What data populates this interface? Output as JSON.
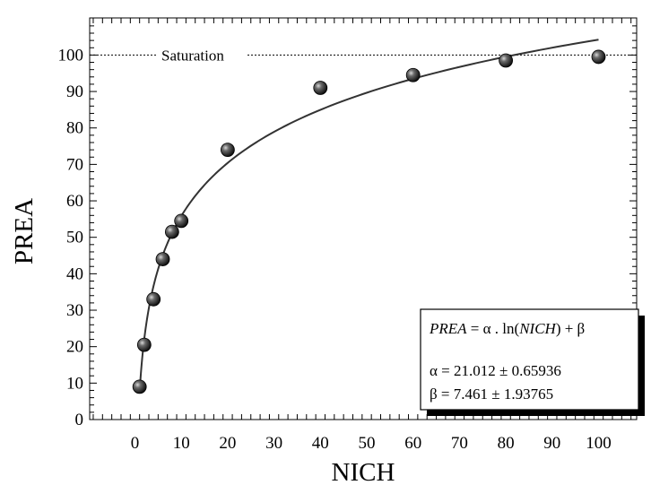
{
  "chart_data": {
    "type": "scatter",
    "xlabel": "NICH",
    "ylabel": "PREA",
    "xlim": [
      -10,
      110
    ],
    "ylim": [
      0,
      108
    ],
    "x_ticks": [
      0,
      10,
      20,
      30,
      40,
      50,
      60,
      70,
      80,
      90,
      100
    ],
    "y_ticks": [
      0,
      10,
      20,
      30,
      40,
      50,
      60,
      70,
      80,
      90,
      100
    ],
    "points": [
      {
        "x": 1,
        "y": 9
      },
      {
        "x": 2,
        "y": 20.5
      },
      {
        "x": 4,
        "y": 33
      },
      {
        "x": 6,
        "y": 44
      },
      {
        "x": 8,
        "y": 51.5
      },
      {
        "x": 10,
        "y": 54.5
      },
      {
        "x": 20,
        "y": 74
      },
      {
        "x": 40,
        "y": 91
      },
      {
        "x": 60,
        "y": 94.5
      },
      {
        "x": 80,
        "y": 98.5
      },
      {
        "x": 100,
        "y": 99.5
      }
    ],
    "fit": {
      "equation": "PREA = α . ln(NICH) + β",
      "alpha": 21.012,
      "beta": 7.461,
      "x_range": [
        1,
        100
      ]
    },
    "reference_line": {
      "y": 100,
      "label": "Saturation"
    },
    "legend_box": {
      "eq_lhs": "PREA",
      "eq_mid": " = α . ln(",
      "eq_var": "NICH",
      "eq_end": ") +  β",
      "alpha_line": "α = 21.012 ± 0.65936",
      "beta_line": "β =  7.461 ± 1.93765"
    },
    "grid": false,
    "legend_placement": "bottom-right"
  }
}
